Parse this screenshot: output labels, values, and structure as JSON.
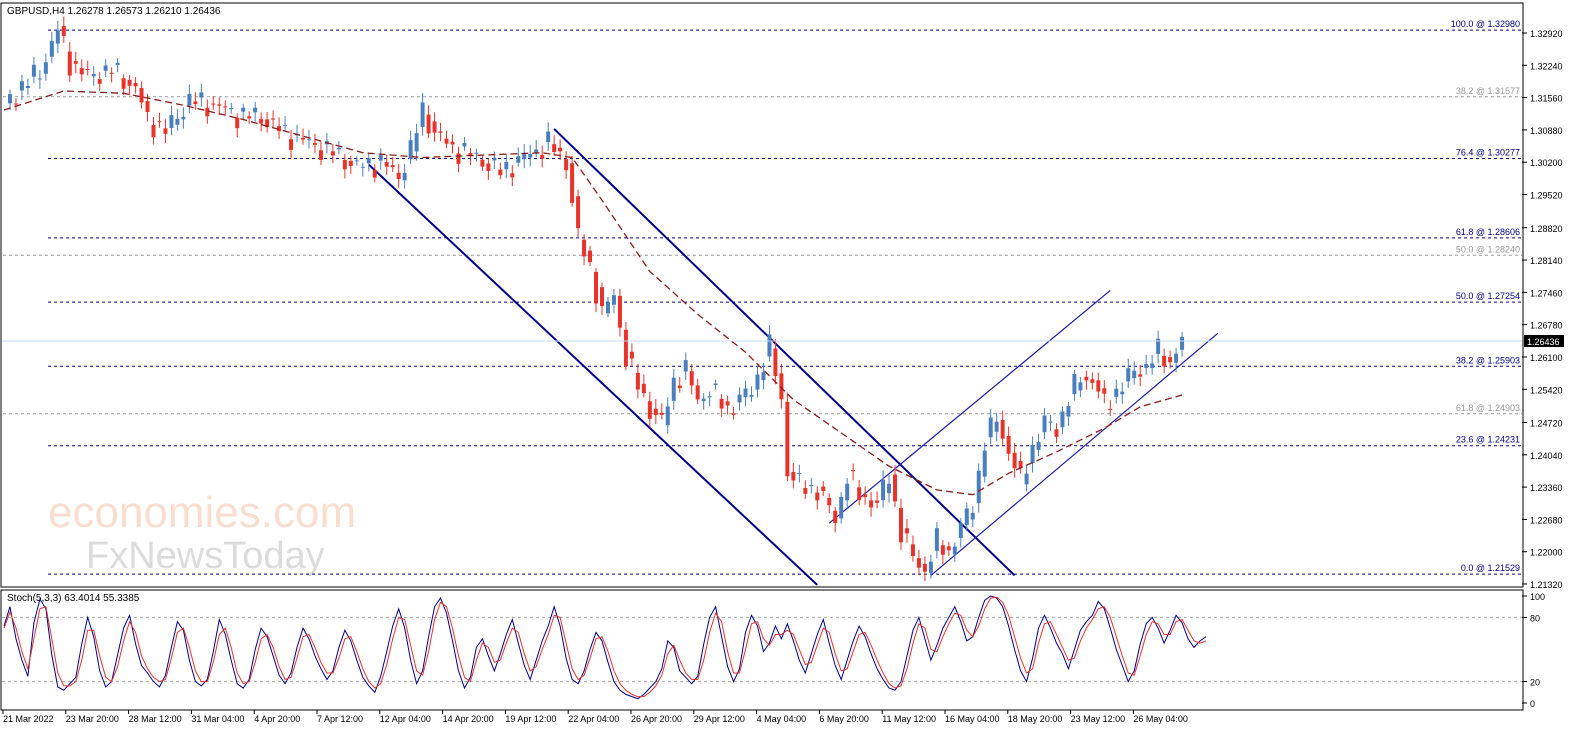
{
  "chart_data": [
    {
      "type": "candlestick",
      "title": "GBPUSD,H4  1.26278 1.26573 1.26210 1.26436",
      "ylim": [
        1.213,
        1.332
      ],
      "y_ticks": [
        "1.32920",
        "1.32240",
        "1.31560",
        "1.30880",
        "1.30200",
        "1.29520",
        "1.28820",
        "1.28140",
        "1.27460",
        "1.26780",
        "1.26100",
        "1.25420",
        "1.24720",
        "1.24040",
        "1.23360",
        "1.22680",
        "1.22000",
        "1.21320"
      ],
      "current_price": "1.26436",
      "x_ticks": [
        "21 Mar 2022",
        "23 Mar 20:00",
        "28 Mar 12:00",
        "31 Mar 04:00",
        "4 Apr 20:00",
        "7 Apr 12:00",
        "12 Apr 04:00",
        "14 Apr 20:00",
        "19 Apr 12:00",
        "22 Apr 04:00",
        "26 Apr 20:00",
        "29 Apr 12:00",
        "4 May 04:00",
        "6 May 20:00",
        "11 May 12:00",
        "16 May 04:00",
        "18 May 20:00",
        "23 May 12:00",
        "26 May 04:00"
      ],
      "fib_levels": [
        {
          "label": "100.0 @ 1.32980",
          "value": 1.3298,
          "set": "primary"
        },
        {
          "label": "38.2 @ 1.31577",
          "value": 1.31577,
          "set": "secondary"
        },
        {
          "label": "76.4 @ 1.30277",
          "value": 1.30277,
          "set": "primary"
        },
        {
          "label": "61.8 @ 1.28606",
          "value": 1.28606,
          "set": "primary"
        },
        {
          "label": "50.0 @ 1.28240",
          "value": 1.2824,
          "set": "secondary"
        },
        {
          "label": "50.0 @ 1.27254",
          "value": 1.27254,
          "set": "primary"
        },
        {
          "label": "38.2 @ 1.25903",
          "value": 1.25903,
          "set": "primary"
        },
        {
          "label": "61.8 @ 1.24903",
          "value": 1.24903,
          "set": "secondary"
        },
        {
          "label": "23.6 @ 1.24231",
          "value": 1.24231,
          "set": "primary"
        },
        {
          "label": "0.0 @ 1.21529",
          "value": 1.21529,
          "set": "primary"
        }
      ],
      "price_path": [
        [
          0,
          1.314
        ],
        [
          3,
          1.318
        ],
        [
          6,
          1.321
        ],
        [
          8,
          1.327
        ],
        [
          9,
          1.3298
        ],
        [
          11,
          1.323
        ],
        [
          14,
          1.32
        ],
        [
          18,
          1.3215
        ],
        [
          22,
          1.3175
        ],
        [
          24,
          1.311
        ],
        [
          27,
          1.3085
        ],
        [
          31,
          1.315
        ],
        [
          35,
          1.314
        ],
        [
          39,
          1.312
        ],
        [
          43,
          1.3115
        ],
        [
          47,
          1.308
        ],
        [
          51,
          1.306
        ],
        [
          55,
          1.304
        ],
        [
          59,
          1.301
        ],
        [
          63,
          1.302
        ],
        [
          66,
          1.299
        ],
        [
          68,
          1.3045
        ],
        [
          70,
          1.313
        ],
        [
          72,
          1.308
        ],
        [
          75,
          1.305
        ],
        [
          79,
          1.303
        ],
        [
          83,
          1.3
        ],
        [
          87,
          1.303
        ],
        [
          91,
          1.306
        ],
        [
          94,
          1.302
        ],
        [
          96,
          1.286
        ],
        [
          98,
          1.28
        ],
        [
          100,
          1.27
        ],
        [
          102,
          1.274
        ],
        [
          104,
          1.261
        ],
        [
          106,
          1.255
        ],
        [
          108,
          1.25
        ],
        [
          110,
          1.247
        ],
        [
          112,
          1.256
        ],
        [
          114,
          1.258
        ],
        [
          116,
          1.252
        ],
        [
          118,
          1.254
        ],
        [
          121,
          1.25
        ],
        [
          125,
          1.254
        ],
        [
          128,
          1.263
        ],
        [
          130,
          1.252
        ],
        [
          131,
          1.237
        ],
        [
          133,
          1.234
        ],
        [
          136,
          1.233
        ],
        [
          139,
          1.227
        ],
        [
          141,
          1.236
        ],
        [
          143,
          1.232
        ],
        [
          146,
          1.23
        ],
        [
          148,
          1.236
        ],
        [
          150,
          1.224
        ],
        [
          152,
          1.219
        ],
        [
          154,
          1.216
        ],
        [
          156,
          1.222
        ],
        [
          158,
          1.22
        ],
        [
          160,
          1.225
        ],
        [
          162,
          1.23
        ],
        [
          164,
          1.243
        ],
        [
          166,
          1.248
        ],
        [
          168,
          1.241
        ],
        [
          170,
          1.235
        ],
        [
          172,
          1.242
        ],
        [
          174,
          1.247
        ],
        [
          176,
          1.246
        ],
        [
          178,
          1.252
        ],
        [
          180,
          1.257
        ],
        [
          182,
          1.256
        ],
        [
          184,
          1.251
        ],
        [
          187,
          1.255
        ],
        [
          189,
          1.258
        ],
        [
          191,
          1.259
        ],
        [
          193,
          1.262
        ],
        [
          195,
          1.26
        ],
        [
          197,
          1.2644
        ]
      ],
      "series": [
        {
          "name": "",
          "kind": "moving-average",
          "color": "#8b1a1a",
          "points": [
            [
              0,
              1.313
            ],
            [
              10,
              1.317
            ],
            [
              20,
              1.3165
            ],
            [
              30,
              1.314
            ],
            [
              40,
              1.311
            ],
            [
              50,
              1.3075
            ],
            [
              60,
              1.304
            ],
            [
              70,
              1.303
            ],
            [
              80,
              1.3035
            ],
            [
              90,
              1.304
            ],
            [
              95,
              1.303
            ],
            [
              100,
              1.294
            ],
            [
              108,
              1.279
            ],
            [
              116,
              1.27
            ],
            [
              124,
              1.262
            ],
            [
              132,
              1.252
            ],
            [
              140,
              1.245
            ],
            [
              148,
              1.238
            ],
            [
              156,
              1.233
            ],
            [
              162,
              1.232
            ],
            [
              168,
              1.2365
            ],
            [
              176,
              1.241
            ],
            [
              184,
              1.246
            ],
            [
              190,
              1.2505
            ],
            [
              197,
              1.253
            ]
          ]
        }
      ],
      "trend_channels": [
        {
          "name": "",
          "color": "#00008b",
          "lines": [
            [
              [
                92,
                1.309
              ],
              [
                169,
                1.215
              ]
            ],
            [
              [
                61,
                1.3015
              ],
              [
                136,
                1.213
              ]
            ]
          ]
        },
        {
          "name": "",
          "color": "#1a1aa8",
          "lines": [
            [
              [
                138,
                1.226
              ],
              [
                185,
                1.275
              ]
            ],
            [
              [
                155,
                1.215
              ],
              [
                203,
                1.266
              ]
            ]
          ]
        }
      ],
      "colors": {
        "up": "#4a7fbf",
        "down": "#e8332a",
        "fib_primary": "#00008b",
        "fib_secondary": "#9a9a9a",
        "price_line": "#c6d7ec"
      }
    },
    {
      "type": "line",
      "title": "Stoch(5,3,3) 63.4014 55.3385",
      "ylim": [
        0,
        100
      ],
      "y_ticks": [
        "100",
        "80",
        "20",
        "0"
      ],
      "series": [
        {
          "name": "",
          "color": "#00008b",
          "values": [
            72,
            90,
            60,
            40,
            25,
            75,
            97,
            88,
            45,
            15,
            12,
            18,
            24,
            55,
            80,
            62,
            30,
            15,
            20,
            45,
            70,
            82,
            55,
            35,
            28,
            20,
            15,
            26,
            52,
            76,
            68,
            40,
            20,
            16,
            22,
            48,
            78,
            64,
            40,
            18,
            14,
            22,
            50,
            70,
            62,
            44,
            26,
            18,
            28,
            52,
            70,
            60,
            44,
            32,
            22,
            30,
            52,
            68,
            58,
            40,
            24,
            16,
            10,
            25,
            48,
            72,
            88,
            70,
            40,
            18,
            30,
            62,
            90,
            98,
            84,
            58,
            30,
            14,
            24,
            52,
            60,
            44,
            30,
            46,
            64,
            78,
            56,
            35,
            22,
            40,
            58,
            72,
            90,
            72,
            42,
            22,
            18,
            30,
            50,
            66,
            58,
            38,
            20,
            12,
            8,
            6,
            4,
            8,
            14,
            20,
            32,
            58,
            52,
            30,
            24,
            18,
            25,
            55,
            80,
            90,
            62,
            34,
            20,
            32,
            66,
            82,
            72,
            48,
            56,
            72,
            60,
            74,
            58,
            40,
            28,
            46,
            64,
            78,
            56,
            35,
            22,
            40,
            58,
            72,
            62,
            46,
            32,
            22,
            14,
            12,
            20,
            44,
            68,
            80,
            60,
            40,
            54,
            70,
            80,
            90,
            76,
            58,
            62,
            80,
            96,
            100,
            98,
            90,
            72,
            50,
            30,
            20,
            42,
            70,
            82,
            70,
            56,
            46,
            32,
            50,
            68,
            76,
            82,
            95,
            88,
            70,
            50,
            35,
            20,
            30,
            55,
            74,
            80,
            70,
            56,
            68,
            82,
            75,
            60,
            52,
            58,
            62
          ]
        },
        {
          "name": "",
          "color": "#e8332a",
          "values": [
            70,
            85,
            70,
            48,
            32,
            60,
            88,
            90,
            60,
            28,
            16,
            16,
            20,
            40,
            68,
            68,
            44,
            24,
            20,
            34,
            58,
            76,
            66,
            44,
            32,
            24,
            20,
            22,
            42,
            66,
            70,
            52,
            30,
            20,
            20,
            38,
            64,
            70,
            52,
            28,
            18,
            20,
            38,
            60,
            64,
            52,
            34,
            22,
            24,
            42,
            62,
            64,
            52,
            38,
            28,
            28,
            42,
            60,
            62,
            48,
            32,
            20,
            14,
            18,
            36,
            60,
            80,
            78,
            54,
            30,
            26,
            48,
            78,
            94,
            90,
            70,
            44,
            24,
            20,
            40,
            56,
            52,
            38,
            40,
            56,
            70,
            66,
            46,
            30,
            34,
            50,
            64,
            82,
            80,
            56,
            32,
            22,
            26,
            42,
            60,
            62,
            48,
            30,
            18,
            12,
            8,
            6,
            6,
            10,
            16,
            26,
            46,
            54,
            40,
            28,
            22,
            22,
            40,
            66,
            84,
            76,
            48,
            28,
            28,
            50,
            74,
            76,
            60,
            54,
            64,
            64,
            68,
            64,
            50,
            36,
            38,
            54,
            70,
            66,
            46,
            30,
            32,
            48,
            64,
            66,
            54,
            40,
            28,
            18,
            14,
            16,
            32,
            56,
            74,
            70,
            50,
            48,
            62,
            74,
            84,
            82,
            68,
            62,
            72,
            88,
            98,
            99,
            94,
            82,
            62,
            42,
            28,
            32,
            56,
            74,
            76,
            64,
            52,
            40,
            42,
            58,
            70,
            78,
            88,
            90,
            80,
            62,
            44,
            28,
            26,
            44,
            64,
            76,
            74,
            64,
            64,
            76,
            78,
            68,
            58,
            56,
            58
          ]
        }
      ]
    }
  ],
  "watermark": {
    "line1": "economies.com",
    "line2": "FxNewsToday"
  }
}
